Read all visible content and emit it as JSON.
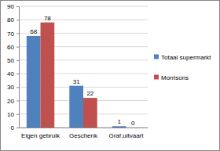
{
  "chart_data": {
    "type": "bar",
    "categories": [
      "Eigen gebruik",
      "Geschenk",
      "Graf,uitvaart"
    ],
    "series": [
      {
        "name": "Totaal supermarkt",
        "color": "#4f81bd",
        "values": [
          68,
          31,
          1
        ]
      },
      {
        "name": "Morrisons",
        "color": "#c0504d",
        "values": [
          78,
          22,
          0
        ]
      }
    ],
    "ylim": [
      0,
      90
    ],
    "yticks": [
      0,
      10,
      20,
      30,
      40,
      50,
      60,
      70,
      80,
      90
    ],
    "grid": true,
    "data_labels": true,
    "legend": "right"
  }
}
